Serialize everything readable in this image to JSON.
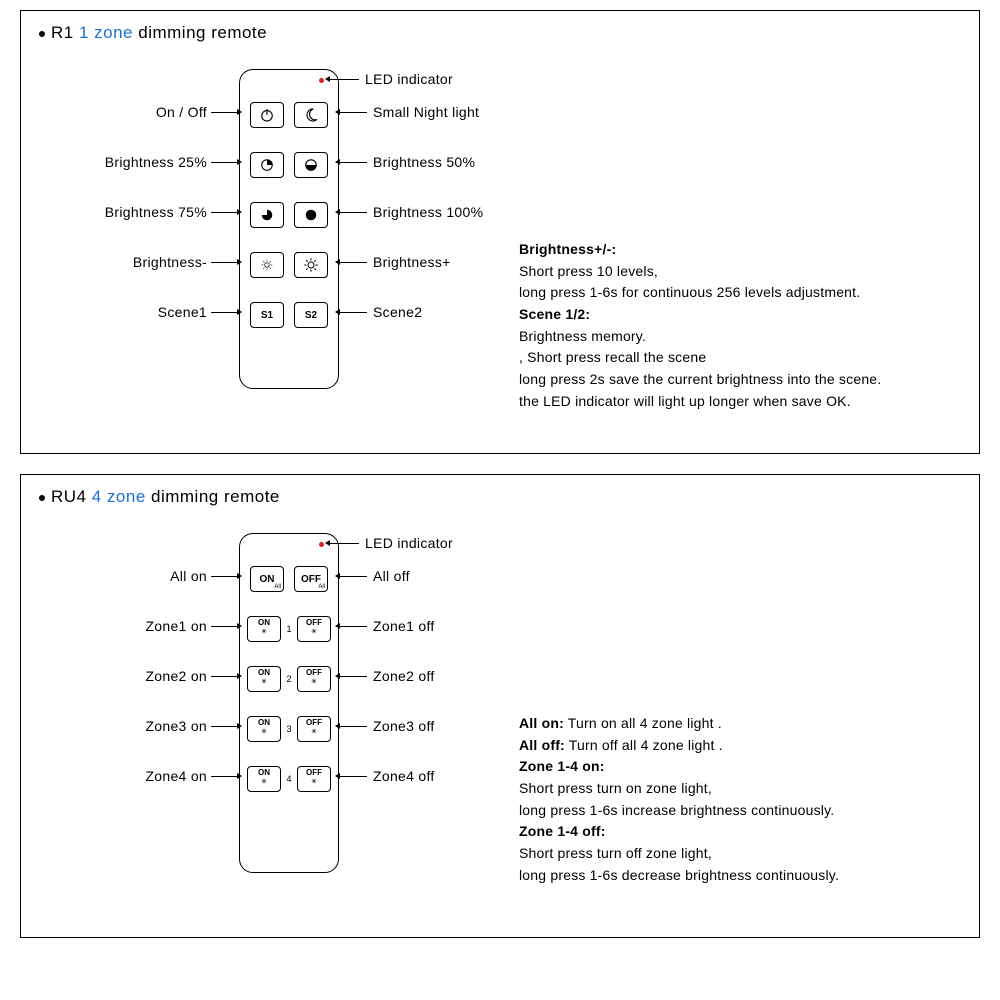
{
  "panel1": {
    "title_prefix": "R1 ",
    "title_zone": "1 zone",
    "title_suffix": " dimming remote",
    "led_label": "LED indicator",
    "rows": [
      {
        "left": "On / Off",
        "right": "Small Night light"
      },
      {
        "left": "Brightness 25%",
        "right": "Brightness 50%"
      },
      {
        "left": "Brightness 75%",
        "right": "Brightness 100%"
      },
      {
        "left": "Brightness-",
        "right": "Brightness+"
      },
      {
        "left": "Scene1",
        "right": "Scene2"
      }
    ],
    "btn_s1": "S1",
    "btn_s2": "S2",
    "desc_lines": [
      {
        "bold": "Brightness+/-:",
        "text": ""
      },
      {
        "bold": "",
        "text": "Short press 10 levels,"
      },
      {
        "bold": "",
        "text": "long press 1-6s for continuous 256 levels adjustment."
      },
      {
        "bold": "Scene 1/2:",
        "text": ""
      },
      {
        "bold": "",
        "text": "Brightness memory."
      },
      {
        "bold": "",
        "text": ", Short press recall the scene"
      },
      {
        "bold": "",
        "text": "long press 2s save the current brightness into the scene."
      },
      {
        "bold": "",
        "text": "the LED indicator will light up longer when save OK."
      }
    ]
  },
  "panel2": {
    "title_prefix": "RU4 ",
    "title_zone": "4 zone",
    "title_suffix": " dimming remote",
    "led_label": "LED indicator",
    "btn_on_all_top": "ON",
    "btn_on_all_sub": "All",
    "btn_off_all_top": "OFF",
    "btn_off_all_sub": "All",
    "btn_on_top": "ON",
    "btn_off_top": "OFF",
    "rows": [
      {
        "left": "All on",
        "right": "All off",
        "num": ""
      },
      {
        "left": "Zone1 on",
        "right": "Zone1 off",
        "num": "1"
      },
      {
        "left": "Zone2 on",
        "right": "Zone2 off",
        "num": "2"
      },
      {
        "left": "Zone3 on",
        "right": "Zone3 off",
        "num": "3"
      },
      {
        "left": "Zone4 on",
        "right": "Zone4 off",
        "num": "4"
      }
    ],
    "desc_lines": [
      {
        "bold": "All on:",
        "text": " Turn on all 4 zone light ."
      },
      {
        "bold": "All off:",
        "text": " Turn off all 4 zone light ."
      },
      {
        "bold": "Zone 1-4 on:",
        "text": ""
      },
      {
        "bold": "",
        "text": "Short press turn on zone light,"
      },
      {
        "bold": "",
        "text": "long press 1-6s increase brightness continuously."
      },
      {
        "bold": "Zone 1-4 off:",
        "text": ""
      },
      {
        "bold": "",
        "text": "Short press turn off zone light,"
      },
      {
        "bold": "",
        "text": "long press 1-6s decrease brightness continuously."
      }
    ]
  },
  "colors": {
    "accent": "#1f6fd4",
    "led": "#e02020"
  }
}
